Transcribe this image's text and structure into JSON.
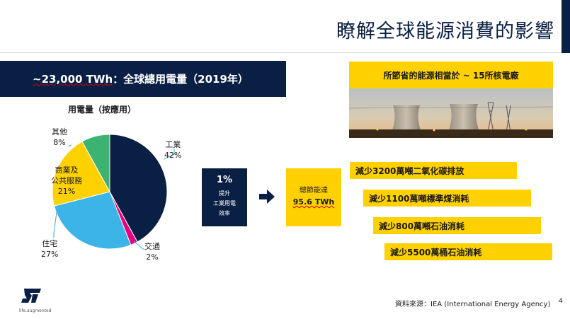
{
  "slide": {
    "title": "瞭解全球能源消費的影響",
    "page_number": "4",
    "source": "資料來源：IEA (International Energy Agency)",
    "logo_tagline": "life.augmented",
    "logo_name": "st-logo-icon"
  },
  "stat_banner": {
    "value": "~23,000 TWh",
    "text": "：全球總用電量（2019年）"
  },
  "chart_data": {
    "type": "pie",
    "title": "用電量（按應用）",
    "slices": [
      {
        "label": "工業",
        "value": 42,
        "value_text": "42%",
        "color": "#0a1f44"
      },
      {
        "label": "交通",
        "value": 2,
        "value_text": "2%",
        "color": "#e6007e"
      },
      {
        "label": "住宅",
        "value": 27,
        "value_text": "27%",
        "color": "#3cb4e7"
      },
      {
        "label": "商業及公共服務",
        "label_lines": [
          "商業及",
          "公共服務"
        ],
        "value": 21,
        "value_text": "21%",
        "color": "#ffd100"
      },
      {
        "label": "其他",
        "value": 8,
        "value_text": "8%",
        "color": "#3cb371"
      }
    ]
  },
  "plant": {
    "label": "所節省的能源相當於 ~ 15所核電廠"
  },
  "efficiency": {
    "percent": "1%",
    "desc_lines": [
      "提升",
      "工業用電",
      "效率"
    ],
    "arrow_icon": "right-arrow-icon"
  },
  "total_saving": {
    "label": "總節能達",
    "value": "95.6 TWh"
  },
  "savings": [
    "減少3200萬噸二氧化碳排放",
    "減少1100萬噸標準煤消耗",
    "減少800萬噸石油消耗",
    "減少5500萬桶石油消耗"
  ],
  "colors": {
    "navy": "#0a1f44",
    "yellow": "#ffd100",
    "magenta": "#e6007e",
    "light_blue": "#3cb4e7",
    "green": "#3cb371"
  }
}
